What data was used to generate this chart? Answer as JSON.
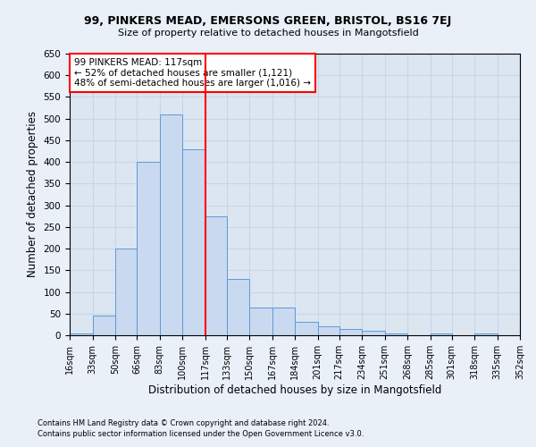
{
  "title1": "99, PINKERS MEAD, EMERSONS GREEN, BRISTOL, BS16 7EJ",
  "title2": "Size of property relative to detached houses in Mangotsfield",
  "xlabel": "Distribution of detached houses by size in Mangotsfield",
  "ylabel": "Number of detached properties",
  "footnote1": "Contains HM Land Registry data © Crown copyright and database right 2024.",
  "footnote2": "Contains public sector information licensed under the Open Government Licence v3.0.",
  "annotation_line1": "99 PINKERS MEAD: 117sqm",
  "annotation_line2": "← 52% of detached houses are smaller (1,121)",
  "annotation_line3": "48% of semi-detached houses are larger (1,016) →",
  "marker_value": 117,
  "bin_edges": [
    16,
    33,
    50,
    66,
    83,
    100,
    117,
    133,
    150,
    167,
    184,
    201,
    217,
    234,
    251,
    268,
    285,
    301,
    318,
    335,
    352
  ],
  "bar_heights": [
    5,
    45,
    200,
    400,
    510,
    430,
    275,
    130,
    65,
    65,
    30,
    20,
    15,
    10,
    5,
    0,
    5,
    0,
    5,
    0
  ],
  "bar_color": "#c9d9f0",
  "bar_edge_color": "#5b9bd5",
  "marker_color": "red",
  "grid_color": "#c8d4e8",
  "bg_color": "#dce6f1",
  "fig_bg_color": "#eaf0f8",
  "ylim": [
    0,
    650
  ],
  "yticks": [
    0,
    50,
    100,
    150,
    200,
    250,
    300,
    350,
    400,
    450,
    500,
    550,
    600,
    650
  ]
}
